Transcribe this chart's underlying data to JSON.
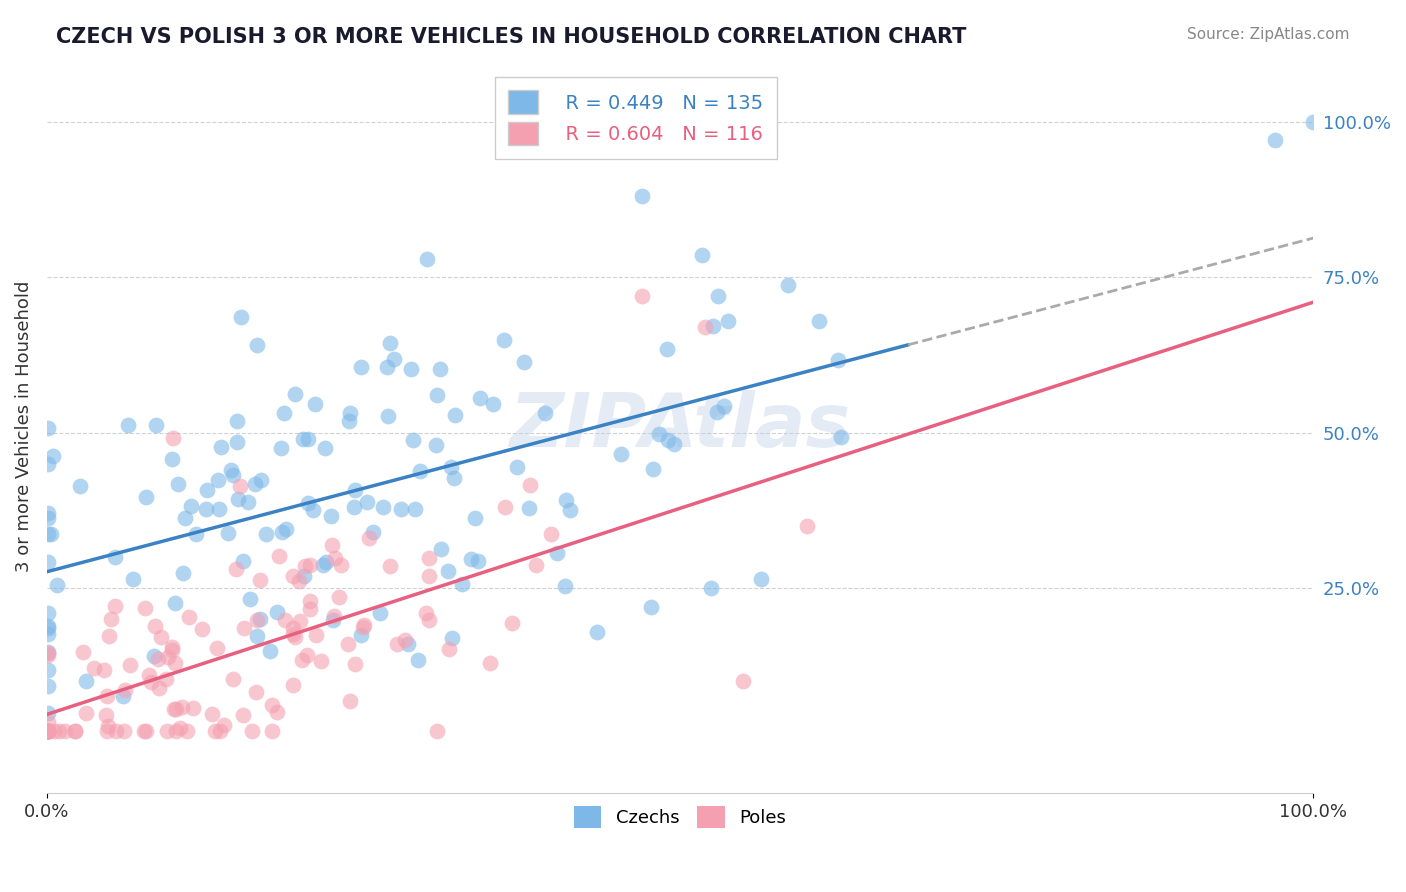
{
  "title": "CZECH VS POLISH 3 OR MORE VEHICLES IN HOUSEHOLD CORRELATION CHART",
  "source": "Source: ZipAtlas.com",
  "ylabel": "3 or more Vehicles in Household",
  "czech_R": 0.449,
  "czech_N": 135,
  "polish_R": 0.604,
  "polish_N": 116,
  "czech_color": "#7EB8E8",
  "polish_color": "#F4A0B0",
  "czech_line_color": "#3B82C4",
  "polish_line_color": "#E86080",
  "background_color": "#FFFFFF",
  "grid_color": "#CCCCCC",
  "right_ytick_labels": [
    "25.0%",
    "50.0%",
    "75.0%",
    "100.0%"
  ],
  "right_ytick_positions": [
    0.25,
    0.5,
    0.75,
    1.0
  ],
  "xlim": [
    0.0,
    1.0
  ],
  "ylim": [
    -0.08,
    1.1
  ]
}
